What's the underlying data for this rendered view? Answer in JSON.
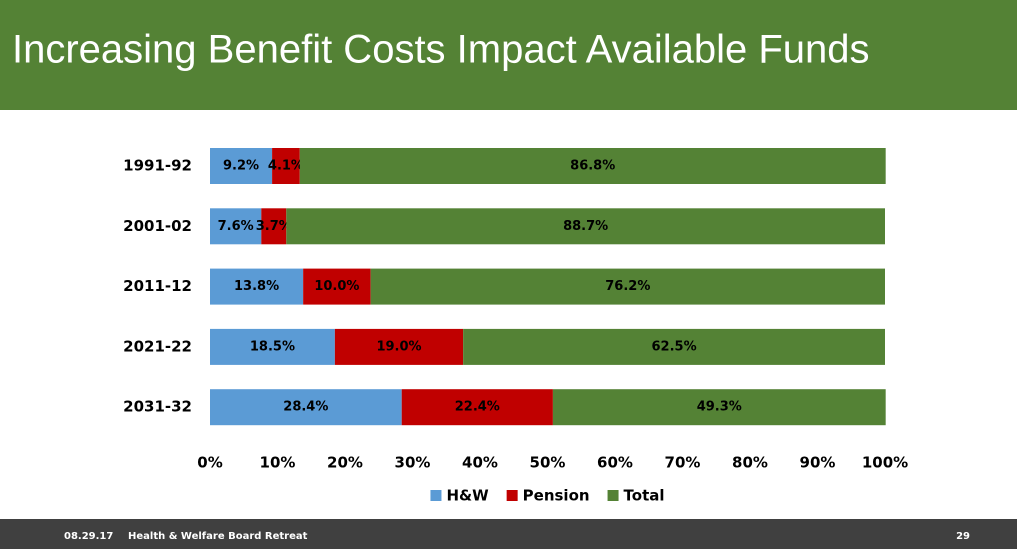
{
  "chart_data": {
    "type": "stacked-bar-horizontal",
    "title": "Increasing Benefit Costs Impact Available Funds",
    "categories": [
      "1991-92",
      "2001-02",
      "2011-12",
      "2021-22",
      "2031-32"
    ],
    "series": [
      {
        "name": "H&W",
        "color": "#5b9bd5",
        "values": [
          9.2,
          7.6,
          13.8,
          18.5,
          28.4
        ],
        "value_labels": [
          "9.2%",
          "7.6%",
          "13.8%",
          "18.5%",
          "28.4%"
        ]
      },
      {
        "name": "Pension",
        "color": "#c00000",
        "values": [
          4.1,
          3.7,
          10.0,
          19.0,
          22.4
        ],
        "value_labels": [
          "4.1%",
          "3.7%",
          "10.0%",
          "19.0%",
          "22.4%"
        ]
      },
      {
        "name": "Total",
        "color": "#548235",
        "values": [
          86.8,
          88.7,
          76.2,
          62.5,
          49.3
        ],
        "value_labels": [
          "86.8%",
          "88.7%",
          "76.2%",
          "62.5%",
          "49.3%"
        ]
      }
    ],
    "xlim": [
      0,
      100
    ],
    "xticks": [
      {
        "value": 0,
        "label": "0%"
      },
      {
        "value": 10,
        "label": "10%"
      },
      {
        "value": 20,
        "label": "20%"
      },
      {
        "value": 30,
        "label": "30%"
      },
      {
        "value": 40,
        "label": "40%"
      },
      {
        "value": 50,
        "label": "50%"
      },
      {
        "value": 60,
        "label": "60%"
      },
      {
        "value": 70,
        "label": "70%"
      },
      {
        "value": 80,
        "label": "80%"
      },
      {
        "value": 90,
        "label": "90%"
      },
      {
        "value": 100,
        "label": "100%"
      }
    ],
    "grid": false,
    "legend": "bottom"
  },
  "footer": {
    "date": "08.29.17",
    "event": "Health & Welfare Board Retreat",
    "page": "29"
  }
}
